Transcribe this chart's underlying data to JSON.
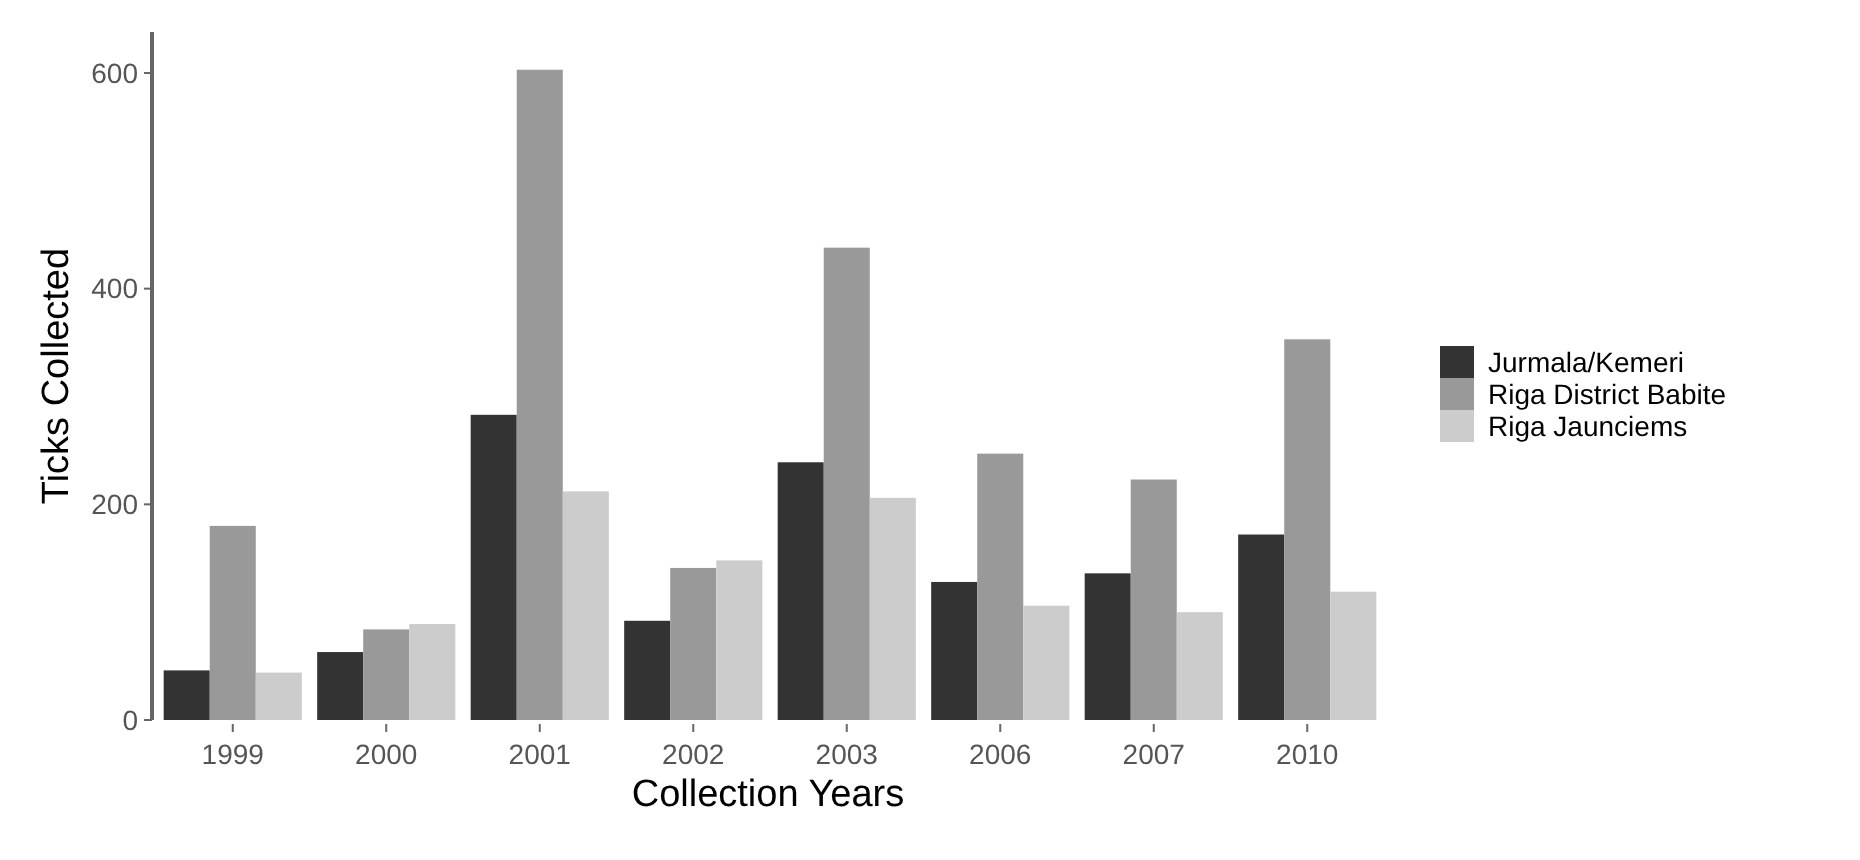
{
  "chart_data": {
    "type": "bar",
    "xlabel": "Collection Years",
    "ylabel": "Ticks Collected",
    "categories": [
      "1999",
      "2000",
      "2001",
      "2002",
      "2003",
      "2006",
      "2007",
      "2010"
    ],
    "series": [
      {
        "name": "Jurmala/Kemeri",
        "color": "#333333",
        "values": [
          46,
          63,
          283,
          92,
          239,
          128,
          136,
          172
        ]
      },
      {
        "name": "Riga District Babite",
        "color": "#999999",
        "values": [
          180,
          84,
          603,
          141,
          438,
          247,
          223,
          353
        ]
      },
      {
        "name": "Riga Jaunciems",
        "color": "#cccccc",
        "values": [
          44,
          89,
          212,
          148,
          206,
          106,
          100,
          119
        ]
      }
    ],
    "ylim": [
      0,
      638
    ],
    "yticks": [
      0,
      200,
      400,
      600
    ],
    "grid": false,
    "legend": "right"
  }
}
